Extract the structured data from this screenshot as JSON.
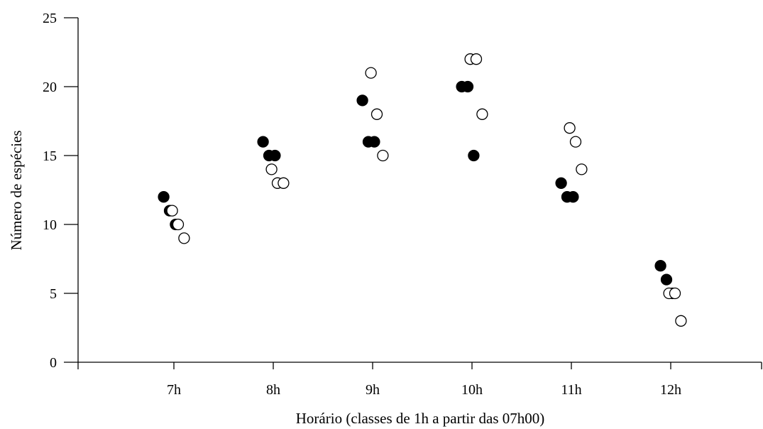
{
  "chart_data": {
    "type": "scatter",
    "title": "",
    "xlabel": "Horário (classes de 1h a partir das 07h00)",
    "ylabel": "Número de espécies",
    "categories": [
      "7h",
      "8h",
      "9h",
      "10h",
      "11h",
      "12h"
    ],
    "ylim": [
      0,
      25
    ],
    "yticks": [
      "0",
      "5",
      "10",
      "15",
      "20",
      "25"
    ],
    "grid": false,
    "legend": "none",
    "series": [
      {
        "marker": "filled-circle",
        "color": "#000000",
        "points": [
          {
            "x": "7h",
            "y": 12
          },
          {
            "x": "7h",
            "y": 11
          },
          {
            "x": "7h",
            "y": 10
          },
          {
            "x": "8h",
            "y": 16
          },
          {
            "x": "8h",
            "y": 15
          },
          {
            "x": "8h",
            "y": 15
          },
          {
            "x": "9h",
            "y": 19
          },
          {
            "x": "9h",
            "y": 16
          },
          {
            "x": "9h",
            "y": 16
          },
          {
            "x": "10h",
            "y": 20
          },
          {
            "x": "10h",
            "y": 20
          },
          {
            "x": "10h",
            "y": 15
          },
          {
            "x": "11h",
            "y": 13
          },
          {
            "x": "11h",
            "y": 12
          },
          {
            "x": "11h",
            "y": 12
          },
          {
            "x": "12h",
            "y": 7
          },
          {
            "x": "12h",
            "y": 6
          },
          {
            "x": "12h",
            "y": 5
          }
        ]
      },
      {
        "marker": "open-circle",
        "color": "#ffffff",
        "points": [
          {
            "x": "7h",
            "y": 11
          },
          {
            "x": "7h",
            "y": 10
          },
          {
            "x": "7h",
            "y": 9
          },
          {
            "x": "8h",
            "y": 14
          },
          {
            "x": "8h",
            "y": 13
          },
          {
            "x": "8h",
            "y": 13
          },
          {
            "x": "9h",
            "y": 21
          },
          {
            "x": "9h",
            "y": 18
          },
          {
            "x": "9h",
            "y": 15
          },
          {
            "x": "10h",
            "y": 22
          },
          {
            "x": "10h",
            "y": 22
          },
          {
            "x": "10h",
            "y": 18
          },
          {
            "x": "11h",
            "y": 17
          },
          {
            "x": "11h",
            "y": 16
          },
          {
            "x": "11h",
            "y": 14
          },
          {
            "x": "12h",
            "y": 5
          },
          {
            "x": "12h",
            "y": 5
          },
          {
            "x": "12h",
            "y": 3
          }
        ]
      }
    ]
  }
}
